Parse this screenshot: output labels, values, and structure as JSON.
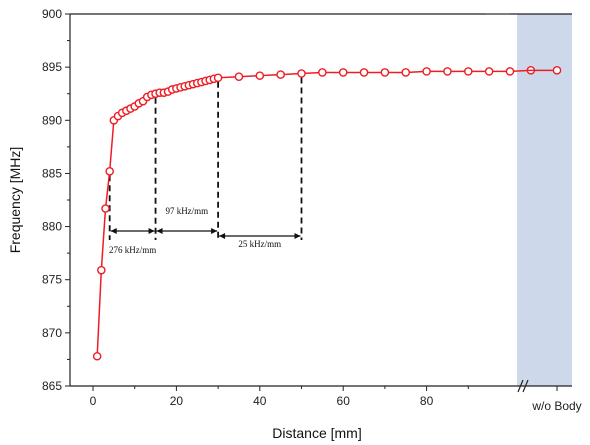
{
  "chart_data": {
    "type": "line",
    "xlabel": "Distance [mm]",
    "ylabel": "Frequency [MHz]",
    "xlim": [
      -5,
      112
    ],
    "ylim": [
      865,
      900
    ],
    "x_ticks": [
      0,
      20,
      40,
      60,
      80
    ],
    "y_ticks": [
      865,
      870,
      875,
      880,
      885,
      890,
      895,
      900
    ],
    "extra_category": {
      "label": "w/o Body",
      "value": 894.7
    },
    "axis_break": true,
    "shaded_region_color": "#cdd9ea",
    "series": [
      {
        "color": "#ee1c24",
        "marker": "open-circle",
        "points": [
          [
            1,
            867.8
          ],
          [
            2,
            875.9
          ],
          [
            3,
            881.7
          ],
          [
            4,
            885.2
          ],
          [
            5,
            890.0
          ],
          [
            6,
            890.4
          ],
          [
            7,
            890.7
          ],
          [
            8,
            890.9
          ],
          [
            9,
            891.1
          ],
          [
            10,
            891.3
          ],
          [
            11,
            891.6
          ],
          [
            12,
            891.8
          ],
          [
            13,
            892.2
          ],
          [
            14,
            892.4
          ],
          [
            15,
            892.5
          ],
          [
            16,
            892.6
          ],
          [
            17,
            892.6
          ],
          [
            18,
            892.7
          ],
          [
            19,
            892.9
          ],
          [
            20,
            893.0
          ],
          [
            21,
            893.1
          ],
          [
            22,
            893.2
          ],
          [
            23,
            893.3
          ],
          [
            24,
            893.4
          ],
          [
            25,
            893.5
          ],
          [
            26,
            893.6
          ],
          [
            27,
            893.7
          ],
          [
            28,
            893.8
          ],
          [
            29,
            893.9
          ],
          [
            30,
            894.0
          ],
          [
            35,
            894.1
          ],
          [
            40,
            894.2
          ],
          [
            45,
            894.3
          ],
          [
            50,
            894.4
          ],
          [
            55,
            894.5
          ],
          [
            60,
            894.5
          ],
          [
            65,
            894.5
          ],
          [
            70,
            894.5
          ],
          [
            75,
            894.5
          ],
          [
            80,
            894.6
          ],
          [
            85,
            894.6
          ],
          [
            90,
            894.6
          ],
          [
            95,
            894.6
          ],
          [
            100,
            894.6
          ],
          [
            105,
            894.7
          ]
        ]
      }
    ],
    "annotations": [
      {
        "text": "276 kHz/mm",
        "x_from": 4,
        "x_to": 15
      },
      {
        "text": "97 kHz/mm",
        "x_from": 15,
        "x_to": 30
      },
      {
        "text": "25 kHz/mm",
        "x_from": 30,
        "x_to": 50
      }
    ],
    "grid": false
  }
}
